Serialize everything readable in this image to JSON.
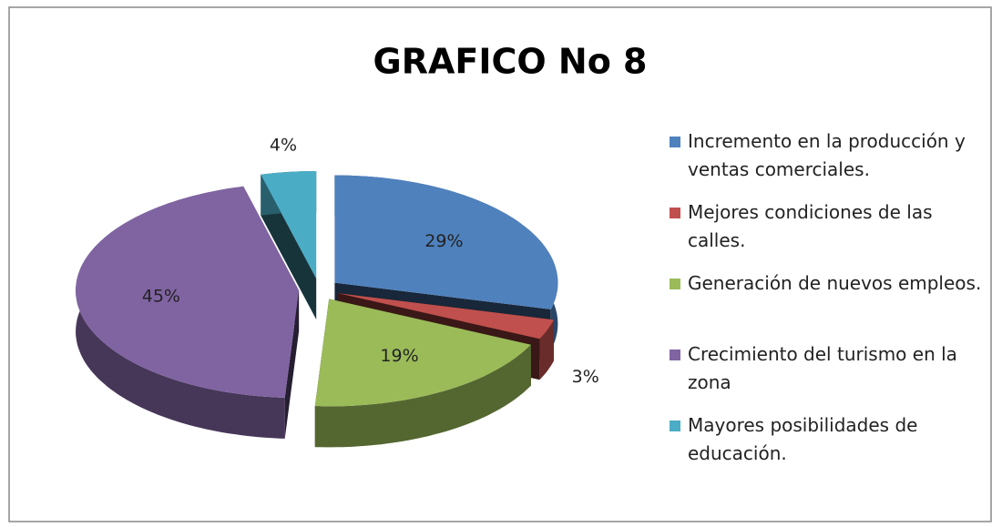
{
  "chart_data": {
    "type": "pie",
    "title": "GRAFICO No 8",
    "categories": [
      "Incremento en la producción y ventas comerciales.",
      "Mejores condiciones de las calles.",
      "Generación de nuevos empleos.",
      "Crecimiento del turismo en la zona",
      "Mayores posibilidades de educación."
    ],
    "values": [
      29,
      3,
      19,
      45,
      4
    ],
    "value_labels": [
      "29%",
      "3%",
      "19%",
      "45%",
      "4%"
    ],
    "colors": [
      "#4f81bd",
      "#c0504d",
      "#9bbb59",
      "#8064a2",
      "#4bacc6"
    ],
    "legend": "right"
  }
}
